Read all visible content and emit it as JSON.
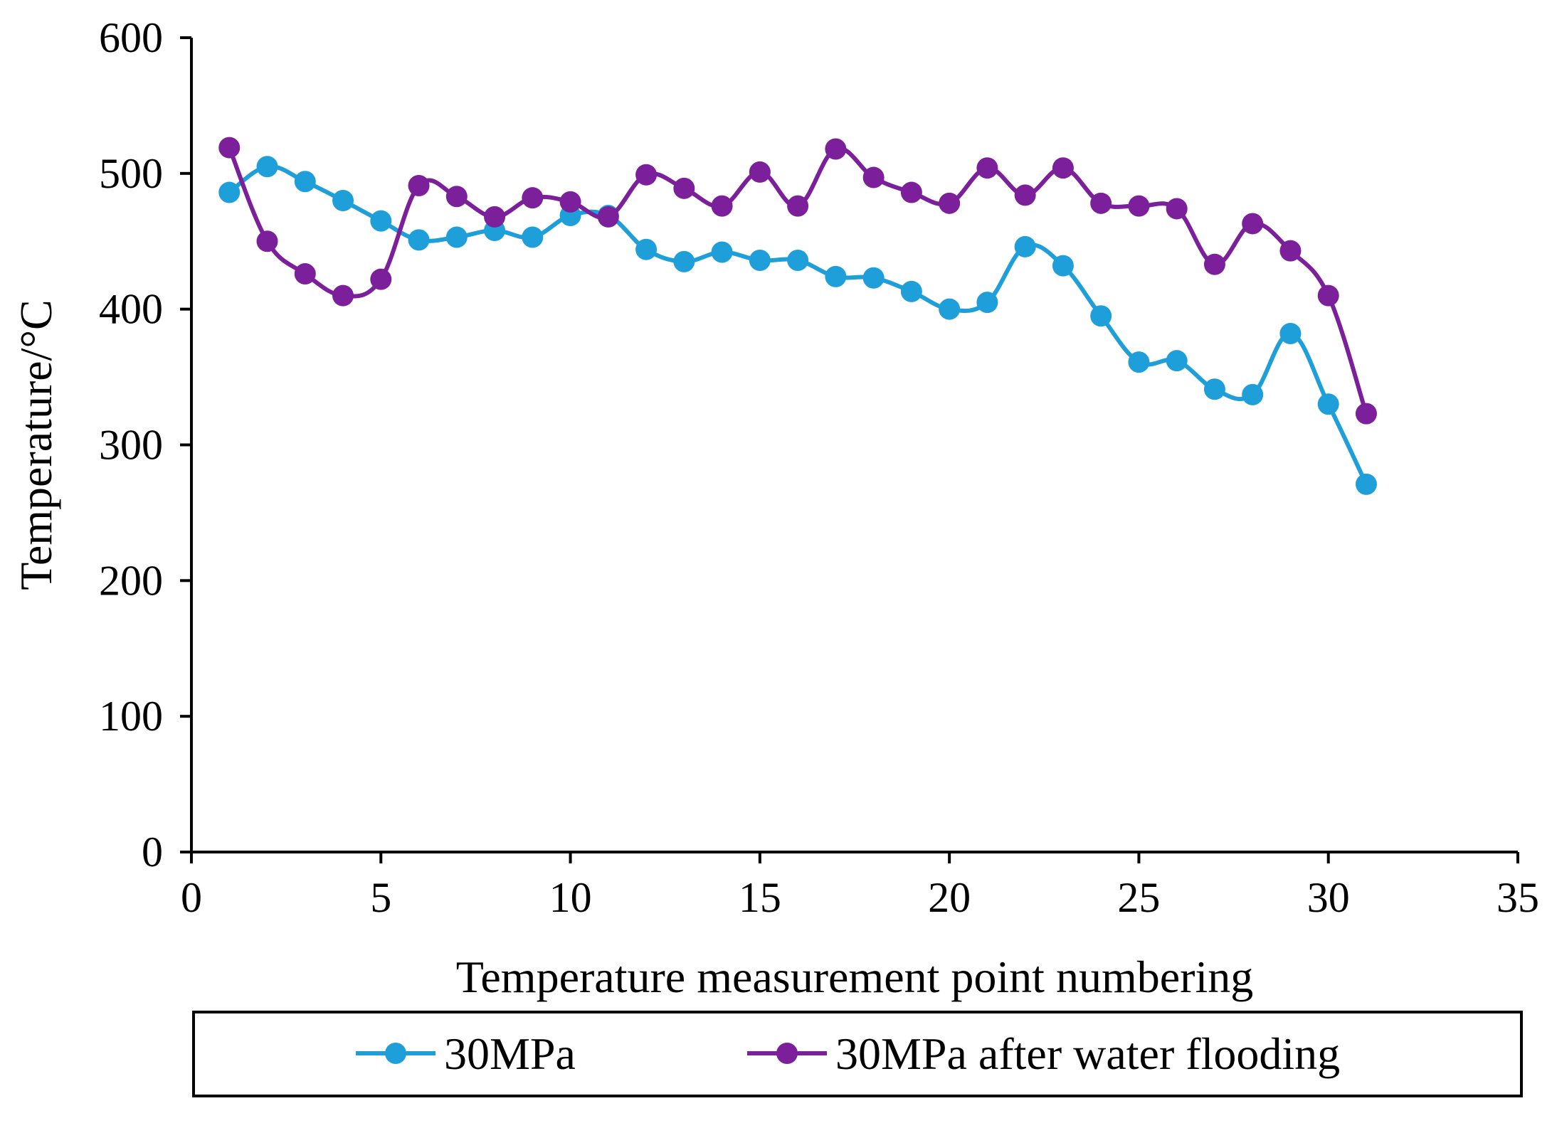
{
  "chart_data": {
    "type": "line",
    "title": "",
    "xlabel": "Temperature measurement point numbering",
    "ylabel": "Temperature/°C",
    "xlim": [
      0,
      35
    ],
    "ylim": [
      0,
      600
    ],
    "xticks": [
      0,
      5,
      10,
      15,
      20,
      25,
      30,
      35
    ],
    "yticks": [
      0,
      100,
      200,
      300,
      400,
      500,
      600
    ],
    "grid": false,
    "legend_position": "bottom",
    "x": [
      1,
      2,
      3,
      4,
      5,
      6,
      7,
      8,
      9,
      10,
      11,
      12,
      13,
      14,
      15,
      16,
      17,
      18,
      19,
      20,
      21,
      22,
      23,
      24,
      25,
      26,
      27,
      28,
      29,
      30,
      31
    ],
    "series": [
      {
        "name": "30MPa",
        "color": "#1f9fd9",
        "values": [
          486,
          505,
          494,
          480,
          465,
          451,
          453,
          458,
          453,
          469,
          469,
          444,
          435,
          442,
          436,
          436,
          424,
          423,
          413,
          400,
          405,
          446,
          432,
          395,
          361,
          362,
          341,
          337,
          382,
          330,
          271
        ]
      },
      {
        "name": "30MPa after water flooding",
        "color": "#7b1f9a",
        "values": [
          519,
          450,
          426,
          410,
          422,
          491,
          483,
          468,
          482,
          479,
          468,
          499,
          489,
          476,
          501,
          476,
          518,
          497,
          486,
          478,
          504,
          484,
          504,
          478,
          476,
          474,
          433,
          463,
          443,
          410,
          323
        ]
      }
    ]
  }
}
